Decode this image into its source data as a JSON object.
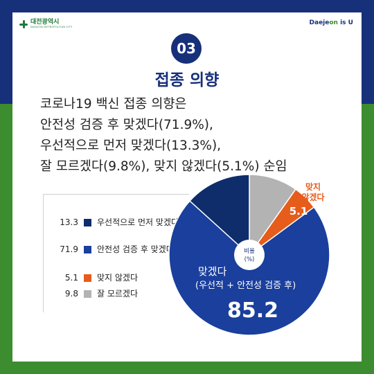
{
  "header": {
    "logo_left": "대전광역시",
    "logo_left_sub": "DAEJEON METROPOLITAN CITY",
    "logo_right_a": "Daeje",
    "logo_right_b": "on",
    "logo_right_c": " is U"
  },
  "badge": "03",
  "heading": "접종 의향",
  "body_lines": [
    "코로나19 백신 접종 의향은",
    "안전성 검증 후 맞겠다(71.9%),",
    "우선적으로 먼저 맞겠다(13.3%),",
    "잘 모르겠다(9.8%), 맞지 않겠다(5.1%) 순임"
  ],
  "legend": [
    {
      "value": "13.3",
      "label": "우선적으로 먼저 맞겠다",
      "color": "#0f2d6b"
    },
    {
      "value": "71.9",
      "label": "안전성 검증 후 맞겠다",
      "color": "#1a3f9c"
    },
    {
      "value": "5.1",
      "label": "맞지 않겠다",
      "color": "#e65c1a"
    },
    {
      "value": "9.8",
      "label": "잘 모르겠다",
      "color": "#b3b3b3"
    }
  ],
  "chart_data": {
    "type": "pie",
    "center_label": "비율\n(%)",
    "slices": [
      {
        "name": "잘 모르겠다",
        "value": 9.8,
        "color": "#b3b3b3"
      },
      {
        "name": "맞지 않겠다",
        "value": 5.1,
        "color": "#e65c1a"
      },
      {
        "name": "안전성 검증 후 맞겠다",
        "value": 71.9,
        "color": "#1a3f9c"
      },
      {
        "name": "우선적으로 먼저 맞겠다",
        "value": 13.3,
        "color": "#0f2d6b"
      }
    ],
    "annotations": {
      "no_label": "맞지\n않겠다",
      "no_value": "5.1",
      "yes_label": "맞겠다",
      "yes_sub": "(우선적 + 안전성 검증 후)",
      "yes_value": "85.2"
    }
  }
}
